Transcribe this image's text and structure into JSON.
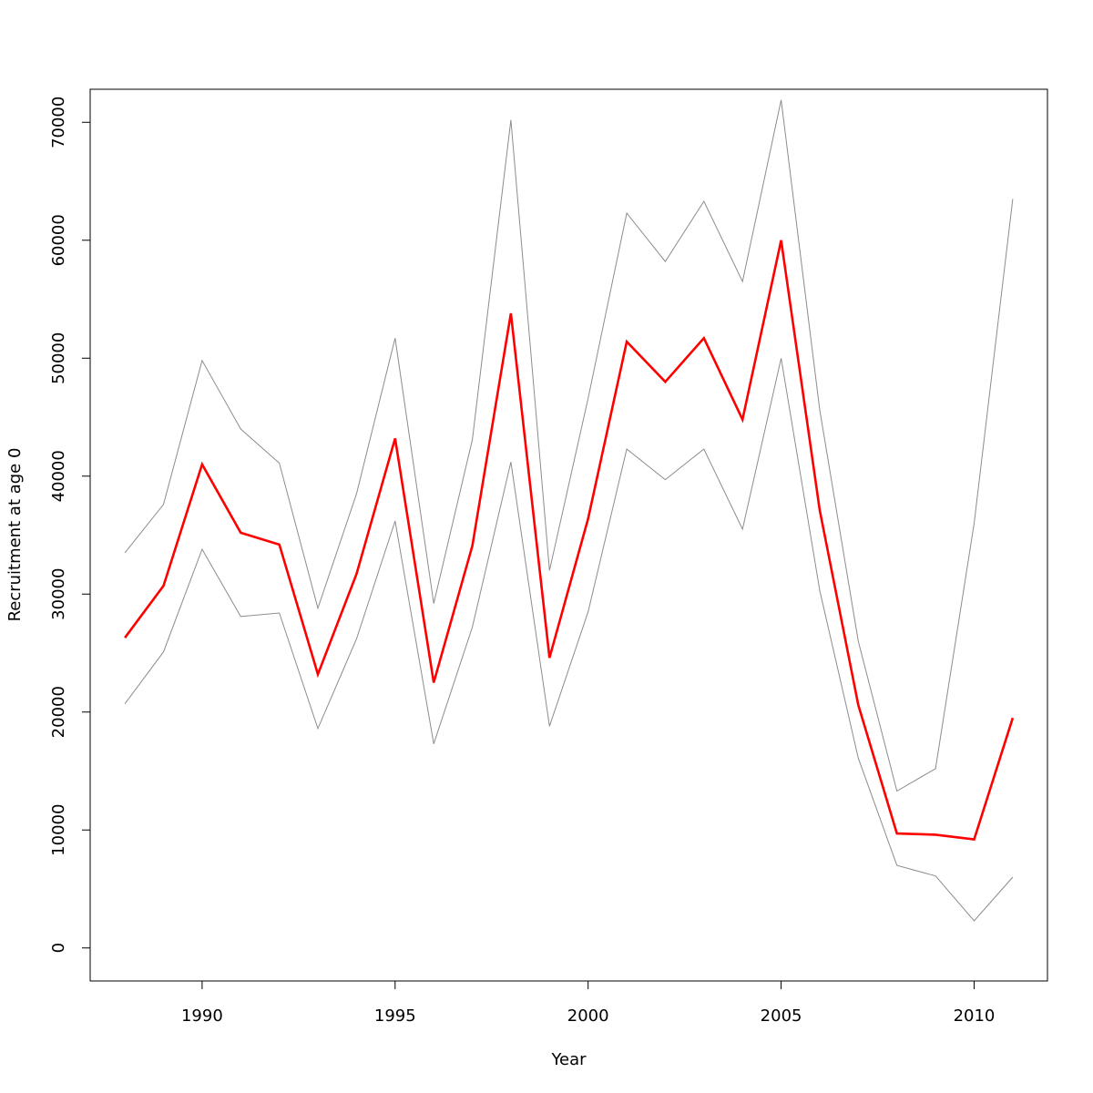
{
  "chart_data": {
    "type": "line",
    "title": "",
    "xlabel": "Year",
    "ylabel": "Recruitment at age 0",
    "xlim": [
      1987.1,
      2011.9
    ],
    "ylim": [
      -2800,
      72800
    ],
    "xticks": [
      1990,
      1995,
      2000,
      2005,
      2010
    ],
    "yticks": [
      0,
      10000,
      20000,
      30000,
      40000,
      50000,
      60000,
      70000
    ],
    "grid": false,
    "legend": "none",
    "x": [
      1988,
      1989,
      1990,
      1991,
      1992,
      1993,
      1994,
      1995,
      1996,
      1997,
      1998,
      1999,
      2000,
      2001,
      2002,
      2003,
      2004,
      2005,
      2006,
      2007,
      2008,
      2009,
      2010,
      2011
    ],
    "series": [
      {
        "color": "#ff0000",
        "role": "estimate",
        "values": [
          26300,
          30700,
          41000,
          35200,
          34200,
          23200,
          31700,
          43200,
          22500,
          34100,
          53800,
          24600,
          36400,
          51400,
          48000,
          51700,
          44800,
          60000,
          37100,
          20600,
          9700,
          9600,
          9200,
          19500
        ]
      },
      {
        "color": "#8c8c8c",
        "role": "upper-bound",
        "values": [
          33500,
          37600,
          49800,
          44000,
          41100,
          28800,
          38500,
          51700,
          29200,
          43100,
          70200,
          32000,
          46600,
          62300,
          58200,
          63300,
          56500,
          71900,
          45600,
          26000,
          13300,
          15200,
          36000,
          63500
        ]
      },
      {
        "color": "#8c8c8c",
        "role": "lower-bound",
        "values": [
          20700,
          25100,
          33800,
          28100,
          28400,
          18600,
          26200,
          36200,
          17300,
          27200,
          41200,
          18800,
          28500,
          42300,
          39700,
          42300,
          35500,
          50000,
          30300,
          16100,
          7000,
          6100,
          2300,
          6000
        ]
      }
    ]
  }
}
